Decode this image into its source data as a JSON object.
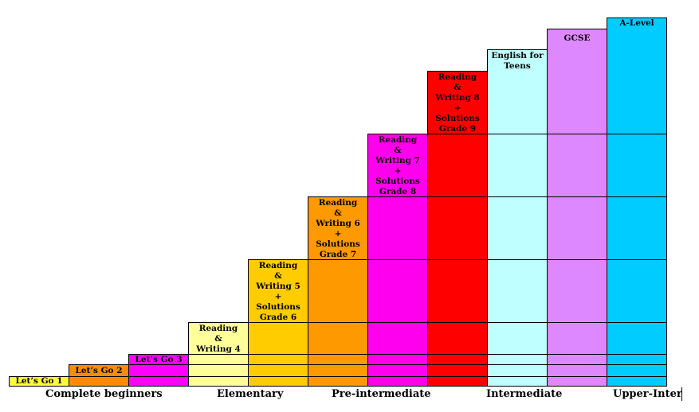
{
  "stages": [
    {
      "id": "lets-go-1",
      "label": "Let’s Go 1",
      "color": "#ffff33"
    },
    {
      "id": "lets-go-2",
      "label": "Let’s Go 2",
      "color": "#ff8c00"
    },
    {
      "id": "lets-go-3",
      "label": "Let’s Go 3",
      "color": "#ff00ff"
    },
    {
      "id": "reading-writing-4",
      "label": "Reading\n&\nWriting 4",
      "color": "#ffff99"
    },
    {
      "id": "reading-writing-5",
      "label": "Reading\n&\nWriting 5\n+\nSolutions\nGrade 6",
      "color": "#ffcc00"
    },
    {
      "id": "reading-writing-6",
      "label": "Reading\n&\nWriting 6\n+\nSolutions\nGrade 7",
      "color": "#ff9900"
    },
    {
      "id": "reading-writing-7",
      "label": "Reading\n&\nWriting 7\n+\nSolutions\nGrade 8",
      "color": "#ff00ee"
    },
    {
      "id": "reading-writing-8",
      "label": "Reading\n&\nWriting 8\n+\nSolutions\nGrade 9",
      "color": "#ff0000"
    },
    {
      "id": "english-for-teens",
      "label": "English for\nTeens",
      "color": "#c0ffff"
    },
    {
      "id": "gcse",
      "label": "GCSE",
      "color": "#dd88ff"
    },
    {
      "id": "a-level",
      "label": "A-Level",
      "color": "#00ccff"
    }
  ],
  "levels": [
    {
      "id": "complete-beginners",
      "label": "Complete beginners"
    },
    {
      "id": "elementary",
      "label": "Elementary"
    },
    {
      "id": "pre-intermediate",
      "label": "Pre-intermediate"
    },
    {
      "id": "intermediate",
      "label": "Intermediate"
    },
    {
      "id": "upper-inter",
      "label": "Upper-Inter"
    }
  ]
}
